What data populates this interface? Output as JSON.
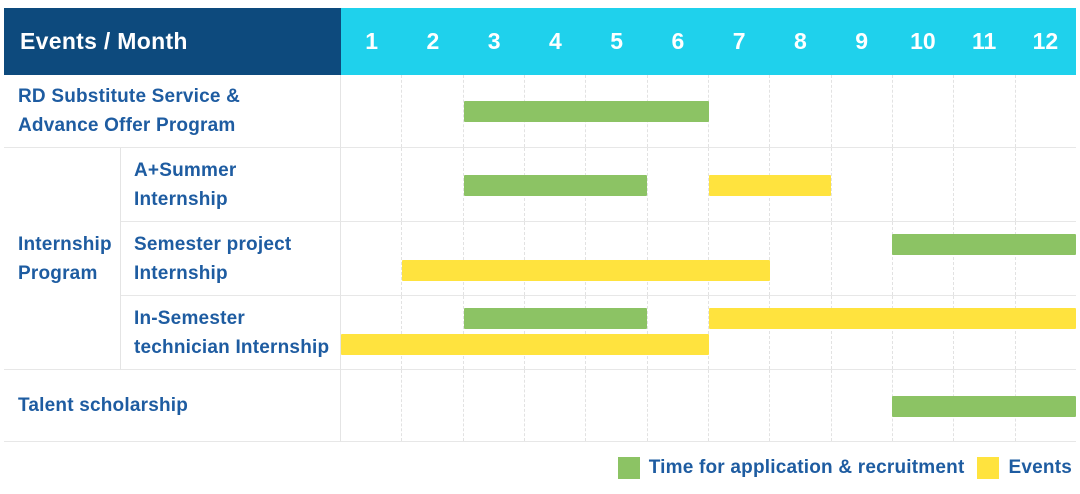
{
  "header": {
    "title": "Events / Month",
    "months": [
      "1",
      "2",
      "3",
      "4",
      "5",
      "6",
      "7",
      "8",
      "9",
      "10",
      "11",
      "12"
    ]
  },
  "colors": {
    "navy_header_bg": "#0D4A7D",
    "cyan_months_bg": "#1FD1EC",
    "application_green": "#8CC364",
    "events_yellow": "#FFE33E",
    "label_text_blue": "#1E5CA1",
    "grid_line_gray": "#E7E7E7",
    "header_text": "#FFFFFF"
  },
  "legend": {
    "items": [
      {
        "key": "application",
        "label": "Time for application & recruitment"
      },
      {
        "key": "events",
        "label": "Events"
      }
    ]
  },
  "chart_data": {
    "type": "bar",
    "subtype": "gantt-timeline",
    "title": "Events / Month",
    "x": {
      "label": "Month",
      "categories": [
        1,
        2,
        3,
        4,
        5,
        6,
        7,
        8,
        9,
        10,
        11,
        12
      ]
    },
    "months_total": 12,
    "legend_position": "bottom-right",
    "series": [
      {
        "key": "application",
        "name": "Time for application & recruitment",
        "color": "#8CC364"
      },
      {
        "key": "events",
        "name": "Events",
        "color": "#FFE33E"
      }
    ],
    "group_label_lines": [
      "Internship",
      "Program"
    ],
    "group_label": "Internship Program",
    "rows": [
      {
        "id": "rd-substitute-service",
        "group": "",
        "label": "RD Substitute Service & Advance Offer Program",
        "label_lines": [
          "RD Substitute Service &",
          "Advance Offer Program"
        ],
        "full_width_label": true,
        "bars": [
          {
            "series": "application",
            "start_month": 3,
            "end_month": 6,
            "lane": "center"
          }
        ]
      },
      {
        "id": "a-plus-summer-internship",
        "group": "Internship Program",
        "label": "A+Summer Internship",
        "label_lines": [
          "A+Summer",
          "Internship"
        ],
        "full_width_label": false,
        "bars": [
          {
            "series": "application",
            "start_month": 3,
            "end_month": 5,
            "lane": "center"
          },
          {
            "series": "events",
            "start_month": 7,
            "end_month": 8,
            "lane": "center"
          }
        ]
      },
      {
        "id": "semester-project-internship",
        "group": "Internship Program",
        "label": "Semester project Internship",
        "label_lines": [
          "Semester project",
          "Internship"
        ],
        "full_width_label": false,
        "bars": [
          {
            "series": "application",
            "start_month": 10,
            "end_month": 12,
            "lane": "top"
          },
          {
            "series": "events",
            "start_month": 2,
            "end_month": 7,
            "lane": "bottom"
          }
        ]
      },
      {
        "id": "in-semester-technician-internship",
        "group": "Internship Program",
        "label": "In-Semester technician Internship",
        "label_lines": [
          "In-Semester",
          "technician Internship"
        ],
        "full_width_label": false,
        "bars": [
          {
            "series": "application",
            "start_month": 3,
            "end_month": 5,
            "lane": "top"
          },
          {
            "series": "events",
            "start_month": 7,
            "end_month": 12,
            "lane": "top"
          },
          {
            "series": "events",
            "start_month": 1,
            "end_month": 6,
            "lane": "bottom"
          }
        ]
      },
      {
        "id": "talent-scholarship",
        "group": "",
        "label": "Talent scholarship",
        "label_lines": [
          "Talent scholarship"
        ],
        "full_width_label": true,
        "bars": [
          {
            "series": "application",
            "start_month": 10,
            "end_month": 12,
            "lane": "center"
          }
        ]
      }
    ]
  }
}
